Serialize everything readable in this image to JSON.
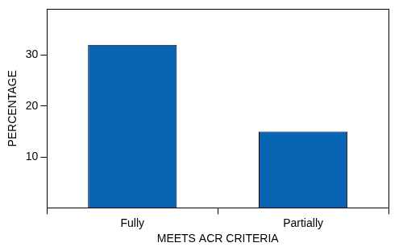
{
  "chart_data": {
    "type": "bar",
    "categories": [
      "Fully",
      "Partially"
    ],
    "values": [
      32,
      15
    ],
    "color": "#0a64b4",
    "x_label": "MEETS ACR CRITERIA",
    "y_label": "PERCENTAGE",
    "ylim": [
      0,
      39
    ],
    "yticks": [
      10,
      20,
      30
    ],
    "grid": false
  }
}
